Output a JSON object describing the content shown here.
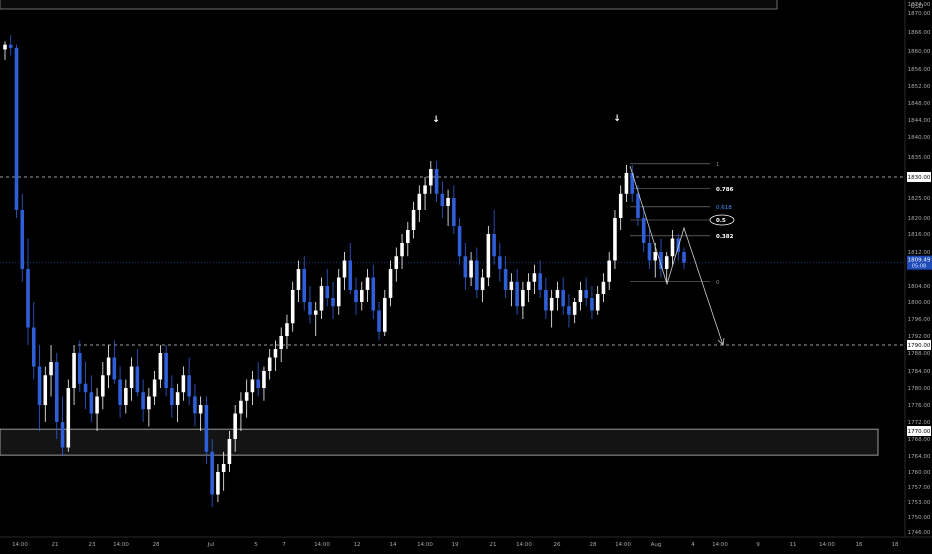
{
  "currency": "USD",
  "colors": {
    "background": "#000000",
    "up": "#ffffff",
    "down": "#2f5fd8",
    "axis_text": "#a8a8a8",
    "fib": "#8a8a8a",
    "price_line": "#1e3c8c"
  },
  "chart_data": {
    "type": "candlestick",
    "instrument_quote": "USD",
    "ylim": [
      1746,
      1878
    ],
    "y_ticks": [
      "1874.00",
      "1870.00",
      "1866.00",
      "1860.00",
      "1856.00",
      "1852.00",
      "1848.00",
      "1844.00",
      "1840.00",
      "1835.00",
      "1830.00",
      "1825.00",
      "1820.00",
      "1816.00",
      "1812.00",
      "1809.49",
      "1804.00",
      "1800.00",
      "1796.00",
      "1792.00",
      "1790.00",
      "1788.00",
      "1784.00",
      "1780.00",
      "1776.00",
      "1772.00",
      "1770.00",
      "1768.00",
      "1764.00",
      "1760.00",
      "1757.00",
      "1753.00",
      "1750.00",
      "1746.00"
    ],
    "x_ticks": [
      "14:00",
      "21",
      "23",
      "14:00",
      "28",
      "Jul",
      "5",
      "7",
      "14:00",
      "12",
      "14",
      "14:00",
      "19",
      "21",
      "14:00",
      "26",
      "28",
      "14:00",
      "Aug",
      "4",
      "14:00",
      "9",
      "11",
      "14:00",
      "16",
      "18"
    ],
    "current_price": "1809.49",
    "current_price_sub": "05:08",
    "levels": [
      {
        "label": "1830.00",
        "value": 1830,
        "style": "dashed"
      },
      {
        "label": "1790.00",
        "value": 1790,
        "style": "dashed"
      }
    ],
    "zone": {
      "label": "1770.00",
      "from": 1764.2,
      "to": 1770.4
    },
    "fib_levels": [
      {
        "label": "1",
        "value": 1833.3
      },
      {
        "label": "0.786",
        "value": 1827.2
      },
      {
        "label": "0.618",
        "value": 1822.8
      },
      {
        "label": "0.5",
        "value": 1819.5
      },
      {
        "label": "0.382",
        "value": 1815.6
      },
      {
        "label": "0",
        "value": 1805.0
      }
    ],
    "markers": [
      "down-arrow",
      "down-arrow"
    ],
    "candles": [
      [
        1860.5,
        1863,
        1858,
        1862
      ],
      [
        1862,
        1865,
        1859,
        1861
      ],
      [
        1861,
        1862,
        1820,
        1822
      ],
      [
        1822,
        1826,
        1805,
        1808
      ],
      [
        1808,
        1815,
        1790,
        1794
      ],
      [
        1794,
        1800,
        1782,
        1785
      ],
      [
        1785,
        1790,
        1770,
        1776
      ],
      [
        1776,
        1785,
        1772,
        1783
      ],
      [
        1783,
        1790,
        1778,
        1786
      ],
      [
        1786,
        1788,
        1768,
        1772
      ],
      [
        1772,
        1778,
        1764,
        1766
      ],
      [
        1766,
        1782,
        1765,
        1780
      ],
      [
        1780,
        1790,
        1776,
        1788
      ],
      [
        1788,
        1791,
        1779,
        1781
      ],
      [
        1781,
        1786,
        1775,
        1779
      ],
      [
        1779,
        1783,
        1772,
        1774
      ],
      [
        1774,
        1780,
        1770,
        1778
      ],
      [
        1778,
        1786,
        1775,
        1783
      ],
      [
        1783,
        1790,
        1780,
        1787
      ],
      [
        1787,
        1791,
        1781,
        1782
      ],
      [
        1782,
        1785,
        1773,
        1776
      ],
      [
        1776,
        1782,
        1774,
        1780
      ],
      [
        1780,
        1787,
        1777,
        1785
      ],
      [
        1785,
        1789,
        1778,
        1779
      ],
      [
        1779,
        1782,
        1772,
        1775
      ],
      [
        1775,
        1780,
        1771,
        1778
      ],
      [
        1778,
        1784,
        1776,
        1782
      ],
      [
        1782,
        1790,
        1780,
        1788
      ],
      [
        1788,
        1790,
        1778,
        1780
      ],
      [
        1780,
        1783,
        1773,
        1776
      ],
      [
        1776,
        1781,
        1772,
        1779
      ],
      [
        1779,
        1785,
        1777,
        1783
      ],
      [
        1783,
        1787,
        1776,
        1778
      ],
      [
        1778,
        1781,
        1771,
        1774
      ],
      [
        1774,
        1778,
        1770,
        1776
      ],
      [
        1776,
        1778,
        1762,
        1765
      ],
      [
        1765,
        1768,
        1752,
        1755
      ],
      [
        1755,
        1762,
        1753,
        1760
      ],
      [
        1760,
        1765,
        1756,
        1762
      ],
      [
        1762,
        1770,
        1760,
        1768
      ],
      [
        1768,
        1776,
        1765,
        1774
      ],
      [
        1774,
        1779,
        1770,
        1777
      ],
      [
        1777,
        1782,
        1773,
        1779
      ],
      [
        1779,
        1784,
        1776,
        1782
      ],
      [
        1782,
        1786,
        1778,
        1780
      ],
      [
        1780,
        1785,
        1777,
        1784
      ],
      [
        1784,
        1789,
        1782,
        1787
      ],
      [
        1787,
        1791,
        1784,
        1789
      ],
      [
        1789,
        1794,
        1786,
        1792
      ],
      [
        1792,
        1797,
        1789,
        1795
      ],
      [
        1795,
        1805,
        1793,
        1803
      ],
      [
        1803,
        1810,
        1800,
        1808
      ],
      [
        1808,
        1811,
        1798,
        1800
      ],
      [
        1800,
        1804,
        1795,
        1797
      ],
      [
        1797,
        1800,
        1792,
        1798
      ],
      [
        1798,
        1806,
        1796,
        1804
      ],
      [
        1804,
        1808,
        1799,
        1801
      ],
      [
        1801,
        1805,
        1796,
        1799
      ],
      [
        1799,
        1808,
        1797,
        1806
      ],
      [
        1806,
        1812,
        1803,
        1810
      ],
      [
        1810,
        1814,
        1802,
        1803
      ],
      [
        1803,
        1806,
        1797,
        1800
      ],
      [
        1800,
        1805,
        1798,
        1803
      ],
      [
        1803,
        1808,
        1800,
        1806
      ],
      [
        1806,
        1809,
        1796,
        1798
      ],
      [
        1798,
        1800,
        1791,
        1793
      ],
      [
        1793,
        1803,
        1792,
        1801
      ],
      [
        1801,
        1810,
        1799,
        1808
      ],
      [
        1808,
        1813,
        1805,
        1811
      ],
      [
        1811,
        1816,
        1808,
        1814
      ],
      [
        1814,
        1819,
        1811,
        1817
      ],
      [
        1817,
        1824,
        1815,
        1822
      ],
      [
        1822,
        1828,
        1819,
        1826
      ],
      [
        1826,
        1830,
        1822,
        1828
      ],
      [
        1828,
        1834,
        1826,
        1832
      ],
      [
        1832,
        1834,
        1824,
        1826
      ],
      [
        1826,
        1829,
        1820,
        1823
      ],
      [
        1823,
        1827,
        1818,
        1825
      ],
      [
        1825,
        1828,
        1816,
        1818
      ],
      [
        1818,
        1820,
        1809,
        1811
      ],
      [
        1811,
        1814,
        1803,
        1806
      ],
      [
        1806,
        1812,
        1804,
        1810
      ],
      [
        1810,
        1813,
        1801,
        1803
      ],
      [
        1803,
        1808,
        1800,
        1806
      ],
      [
        1806,
        1818,
        1804,
        1816
      ],
      [
        1816,
        1822,
        1809,
        1811
      ],
      [
        1811,
        1814,
        1805,
        1808
      ],
      [
        1808,
        1811,
        1801,
        1803
      ],
      [
        1803,
        1807,
        1799,
        1805
      ],
      [
        1805,
        1808,
        1797,
        1799
      ],
      [
        1799,
        1805,
        1796,
        1803
      ],
      [
        1803,
        1807,
        1800,
        1805
      ],
      [
        1805,
        1809,
        1802,
        1807
      ],
      [
        1807,
        1810,
        1801,
        1803
      ],
      [
        1803,
        1806,
        1796,
        1798
      ],
      [
        1798,
        1803,
        1794,
        1801
      ],
      [
        1801,
        1805,
        1798,
        1803
      ],
      [
        1803,
        1806,
        1797,
        1799
      ],
      [
        1799,
        1802,
        1794,
        1797
      ],
      [
        1797,
        1801,
        1795,
        1800
      ],
      [
        1800,
        1805,
        1798,
        1803
      ],
      [
        1803,
        1806,
        1799,
        1801
      ],
      [
        1801,
        1804,
        1796,
        1798
      ],
      [
        1798,
        1804,
        1797,
        1802
      ],
      [
        1802,
        1807,
        1800,
        1805
      ],
      [
        1805,
        1812,
        1803,
        1810
      ],
      [
        1810,
        1822,
        1808,
        1820
      ],
      [
        1820,
        1828,
        1817,
        1826
      ],
      [
        1826,
        1833,
        1824,
        1831
      ],
      [
        1831,
        1833,
        1824,
        1826
      ],
      [
        1826,
        1828,
        1818,
        1820
      ],
      [
        1820,
        1823,
        1812,
        1814
      ],
      [
        1814,
        1817,
        1808,
        1810
      ],
      [
        1810,
        1814,
        1806,
        1812
      ],
      [
        1812,
        1815,
        1806,
        1808
      ],
      [
        1808,
        1812,
        1805,
        1811
      ],
      [
        1811,
        1817,
        1809,
        1815
      ],
      [
        1815,
        1816,
        1810,
        1812
      ],
      [
        1812,
        1813,
        1808,
        1809.49
      ]
    ]
  }
}
